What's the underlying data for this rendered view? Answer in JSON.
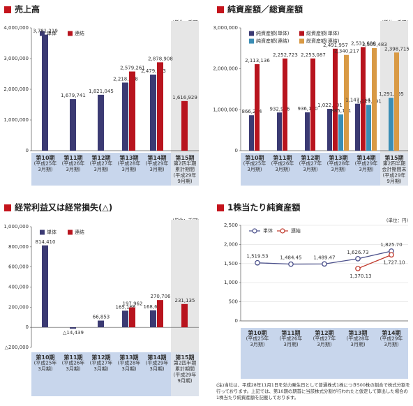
{
  "chart_data": [
    {
      "type": "bar",
      "title": "売上高",
      "unit": "(単位：千円)",
      "categories": [
        "第10期\n(平成25年\n3月期)",
        "第11期\n(平成26年\n3月期)",
        "第12期\n(平成27年\n3月期)",
        "第13期\n(平成28年\n3月期)",
        "第14期\n(平成29年\n3月期)",
        "第15期\n第2四半期\n累計期間\n(平成29年\n9月期)"
      ],
      "series": [
        {
          "name": "単体",
          "color": "#3b3a73",
          "values": [
            3781219,
            1679741,
            1821045,
            2218278,
            2479703,
            null
          ],
          "value_labels": [
            "3,781,219",
            "1,679,741",
            "1,821,045",
            "2,218,278",
            "2,479,703",
            null
          ]
        },
        {
          "name": "連結",
          "color": "#b8141e",
          "values": [
            null,
            null,
            null,
            2579261,
            2878908,
            1616929
          ],
          "value_labels": [
            null,
            null,
            null,
            "2,579,261",
            "2,878,908",
            "1,616,929"
          ]
        }
      ],
      "ylim": [
        0,
        4000000
      ],
      "yticks": [
        0,
        {
          "value": 1000000,
          "label": "1,000,000"
        },
        {
          "value": 2000000,
          "label": "2,000,000"
        },
        {
          "value": 3000000,
          "label": "3,000,000"
        },
        {
          "value": 4000000,
          "label": "4,000,000"
        }
      ],
      "legend": "top-left",
      "grid": false
    },
    {
      "type": "bar",
      "title": "純資産額／総資産額",
      "unit": "(単位：千円)",
      "categories": [
        "第10期\n(平成25年\n3月期)",
        "第11期\n(平成26年\n3月期)",
        "第12期\n(平成27年\n3月期)",
        "第13期\n(平成28年\n3月期)",
        "第14期\n(平成29年\n3月期)",
        "第15期\n第2四半期\n会計期間末\n(平成29年\n9月期)"
      ],
      "series": [
        {
          "name": "純資産額(単体)",
          "color": "#3b3a73",
          "values": [
            866254,
            932976,
            936130,
            1022401,
            1147454,
            null
          ],
          "value_labels": [
            "866,254",
            "932,976",
            "936,130",
            "1,022,401",
            "1,147,454",
            null
          ]
        },
        {
          "name": "総資産額(単体)",
          "color": "#b8141e",
          "values": [
            2113136,
            2252723,
            2253087,
            2491957,
            2531680,
            null
          ],
          "value_labels": [
            "2,113,136",
            "2,252,723",
            "2,253,087",
            "2,491,957",
            "2,531,680",
            null
          ]
        },
        {
          "name": "純資産額(連結)",
          "color": "#3a8db5",
          "values": [
            null,
            null,
            null,
            885161,
            1119791,
            1291795
          ],
          "value_labels": [
            null,
            null,
            null,
            "885,161",
            "1,119,791",
            "1,291,795"
          ]
        },
        {
          "name": "総資産額(連結)",
          "color": "#d99a45",
          "values": [
            null,
            null,
            null,
            2340217,
            2505483,
            2398715
          ],
          "value_labels": [
            null,
            null,
            null,
            "2,340,217",
            "2,505,483",
            "2,398,715"
          ]
        }
      ],
      "ylim": [
        0,
        3000000
      ],
      "yticks": [
        0,
        {
          "value": 1000000,
          "label": "1,000,000"
        },
        {
          "value": 2000000,
          "label": "2,000,000"
        },
        {
          "value": 3000000,
          "label": "3,000,000"
        }
      ],
      "legend": "top-left",
      "grid": false
    },
    {
      "type": "bar",
      "title": "経常利益又は経常損失(△)",
      "unit": "(単位：千円)",
      "categories": [
        "第10期\n(平成25年\n3月期)",
        "第11期\n(平成26年\n3月期)",
        "第12期\n(平成27年\n3月期)",
        "第13期\n(平成28年\n3月期)",
        "第14期\n(平成29年\n3月期)",
        "第15期\n第2四半期\n累計期間\n(平成29年\n9月期)"
      ],
      "series": [
        {
          "name": "単体",
          "color": "#3b3a73",
          "values": [
            814410,
            -14439,
            66853,
            165166,
            168601,
            null
          ],
          "value_labels": [
            "814,410",
            "△14,439",
            "66,853",
            "165,166",
            "168,601",
            null
          ]
        },
        {
          "name": "連結",
          "color": "#b8141e",
          "values": [
            null,
            null,
            null,
            197962,
            270706,
            231135
          ],
          "value_labels": [
            null,
            null,
            null,
            "197,962",
            "270,706",
            "231,135"
          ]
        }
      ],
      "ylim": [
        -200000,
        1000000
      ],
      "yticks": [
        {
          "value": -200000,
          "label": "△200,000"
        },
        0,
        {
          "value": 200000,
          "label": "200,000"
        },
        {
          "value": 400000,
          "label": "400,000"
        },
        {
          "value": 600000,
          "label": "600,000"
        },
        {
          "value": 800000,
          "label": "800,000"
        },
        {
          "value": 1000000,
          "label": "1,000,000"
        }
      ],
      "legend": "top-left",
      "grid": false
    },
    {
      "type": "line",
      "title": "1株当たり純資産額",
      "unit": "(単位：円)",
      "categories": [
        "第10期\n(平成25年\n3月期)",
        "第11期\n(平成26年\n3月期)",
        "第12期\n(平成27年\n3月期)",
        "第13期\n(平成28年\n3月期)",
        "第14期\n(平成29年\n3月期)"
      ],
      "series": [
        {
          "name": "単体",
          "color": "#4a4f8a",
          "values": [
            1519.53,
            1484.45,
            1489.47,
            1626.73,
            1825.7
          ],
          "value_labels": [
            "1,519.53",
            "1,484.45",
            "1,489.47",
            "1,626.73",
            "1,825.70"
          ]
        },
        {
          "name": "連結",
          "color": "#c0392b",
          "values": [
            null,
            null,
            null,
            1370.13,
            1727.1
          ],
          "value_labels": [
            null,
            null,
            null,
            "1,370.13",
            "1,727.10"
          ]
        }
      ],
      "ylim": [
        0,
        2500
      ],
      "yticks": [
        0,
        500,
        {
          "value": 1000,
          "label": "1,000"
        },
        {
          "value": 1500,
          "label": "1,500"
        },
        {
          "value": 2000,
          "label": "2,000"
        },
        {
          "value": 2500,
          "label": "2,500"
        }
      ],
      "legend": "top-left",
      "grid": true,
      "note": "(注)当社は、平成28年11月1日を効力発生日として普通株式1株につき500株の割合で株式分割を行っております。上記では、第10期の期首に当該株式分割が行われたと仮定して算出した場合の1株当たり純資産額を記載しております。"
    }
  ]
}
